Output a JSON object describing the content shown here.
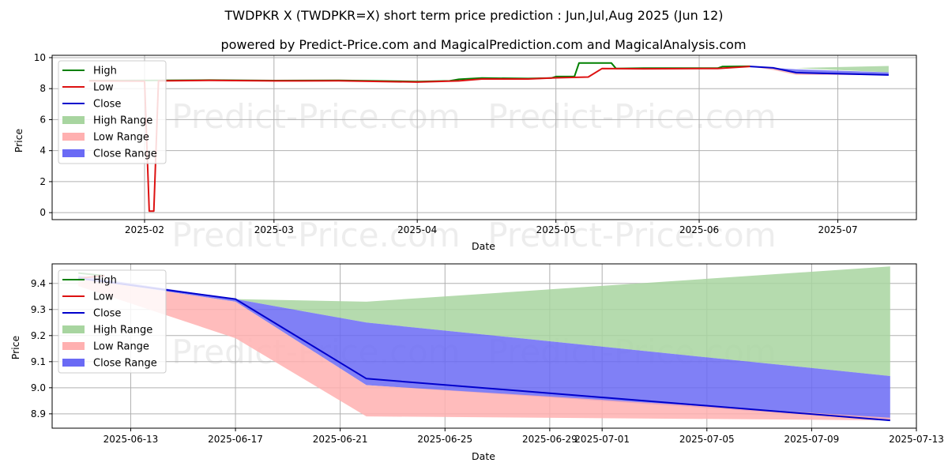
{
  "title": "TWDPKR X (TWDPKR=X) short term price prediction : Jun,Jul,Aug 2025 (Jun 12)",
  "subtitle": "powered by Predict-Price.com and MagicalPrediction.com and MagicalAnalysis.com",
  "watermark": "Predict-Price.com",
  "colors": {
    "high": "#008000",
    "low": "#dd1111",
    "close": "#0000cc",
    "high_range": "#a8d5a0",
    "low_range": "#ffb0b0",
    "close_range": "#6a6af5"
  },
  "legend": [
    "High",
    "Low",
    "Close",
    "High Range",
    "Low Range",
    "Close Range"
  ],
  "chart_data": [
    {
      "type": "line",
      "xlabel": "Date",
      "ylabel": "Price",
      "x_range": [
        "2025-01-12",
        "2025-07-18"
      ],
      "ylim": [
        -0.45,
        10.15
      ],
      "x_ticks": [
        "2025-02-01",
        "2025-03-01",
        "2025-04-01",
        "2025-05-01",
        "2025-06-01",
        "2025-07-01"
      ],
      "x_tick_labels": [
        "2025-02",
        "2025-03",
        "2025-04",
        "2025-05",
        "2025-06",
        "2025-07"
      ],
      "y_ticks": [
        0,
        2,
        4,
        6,
        8,
        10
      ],
      "y_tick_labels": [
        "0",
        "2",
        "4",
        "6",
        "8",
        "10"
      ],
      "series": [
        {
          "name": "High",
          "points": [
            [
              "2025-01-20",
              8.52
            ],
            [
              "2025-02-05",
              8.53
            ],
            [
              "2025-02-15",
              8.55
            ],
            [
              "2025-03-01",
              8.52
            ],
            [
              "2025-03-15",
              8.53
            ],
            [
              "2025-04-01",
              8.46
            ],
            [
              "2025-04-08",
              8.5
            ],
            [
              "2025-04-10",
              8.6
            ],
            [
              "2025-04-15",
              8.68
            ],
            [
              "2025-04-25",
              8.65
            ],
            [
              "2025-04-30",
              8.68
            ],
            [
              "2025-05-01",
              8.78
            ],
            [
              "2025-05-05",
              8.78
            ],
            [
              "2025-05-06",
              9.65
            ],
            [
              "2025-05-13",
              9.65
            ],
            [
              "2025-05-14",
              9.3
            ],
            [
              "2025-05-20",
              9.32
            ],
            [
              "2025-06-05",
              9.32
            ],
            [
              "2025-06-06",
              9.42
            ],
            [
              "2025-06-12",
              9.44
            ]
          ]
        },
        {
          "name": "Low",
          "points": [
            [
              "2025-01-20",
              8.5
            ],
            [
              "2025-02-01",
              8.48
            ],
            [
              "2025-02-02",
              0.1
            ],
            [
              "2025-02-03",
              0.1
            ],
            [
              "2025-02-04",
              8.5
            ],
            [
              "2025-02-15",
              8.53
            ],
            [
              "2025-03-01",
              8.5
            ],
            [
              "2025-03-15",
              8.51
            ],
            [
              "2025-04-01",
              8.42
            ],
            [
              "2025-04-10",
              8.5
            ],
            [
              "2025-04-15",
              8.62
            ],
            [
              "2025-04-25",
              8.62
            ],
            [
              "2025-05-01",
              8.7
            ],
            [
              "2025-05-08",
              8.75
            ],
            [
              "2025-05-11",
              9.3
            ],
            [
              "2025-05-20",
              9.28
            ],
            [
              "2025-06-05",
              9.3
            ],
            [
              "2025-06-12",
              9.43
            ]
          ]
        },
        {
          "name": "Close",
          "points": [
            [
              "2025-06-12",
              9.43
            ],
            [
              "2025-06-17",
              9.34
            ],
            [
              "2025-06-22",
              9.03
            ],
            [
              "2025-07-12",
              8.88
            ]
          ]
        },
        {
          "name": "High Range",
          "kind": "band",
          "points": [
            [
              "2025-06-12",
              9.43,
              9.43
            ],
            [
              "2025-06-17",
              9.34,
              9.34
            ],
            [
              "2025-06-22",
              9.33,
              9.33
            ],
            [
              "2025-07-12",
              9.05,
              9.46
            ]
          ]
        },
        {
          "name": "Low Range",
          "kind": "band",
          "points": [
            [
              "2025-06-12",
              9.43,
              9.43
            ],
            [
              "2025-06-17",
              9.2,
              9.34
            ],
            [
              "2025-06-22",
              8.89,
              9.01
            ],
            [
              "2025-07-12",
              8.88,
              8.88
            ]
          ]
        },
        {
          "name": "Close Range",
          "kind": "band",
          "points": [
            [
              "2025-06-12",
              9.43,
              9.43
            ],
            [
              "2025-06-17",
              9.33,
              9.34
            ],
            [
              "2025-06-22",
              9.01,
              9.25
            ],
            [
              "2025-07-12",
              8.88,
              9.05
            ]
          ]
        }
      ]
    },
    {
      "type": "line",
      "xlabel": "Date",
      "ylabel": "Price",
      "x_range": [
        "2025-06-10",
        "2025-07-13"
      ],
      "ylim": [
        8.845,
        9.475
      ],
      "x_ticks": [
        "2025-06-13",
        "2025-06-17",
        "2025-06-21",
        "2025-06-25",
        "2025-06-29",
        "2025-07-01",
        "2025-07-05",
        "2025-07-09",
        "2025-07-13"
      ],
      "x_tick_labels": [
        "2025-06-13",
        "2025-06-17",
        "2025-06-21",
        "2025-06-25",
        "2025-06-29",
        "2025-07-01",
        "2025-07-05",
        "2025-07-09",
        "2025-07-13"
      ],
      "y_ticks": [
        8.9,
        9.0,
        9.1,
        9.2,
        9.3,
        9.4
      ],
      "y_tick_labels": [
        "8.9",
        "9.0",
        "9.1",
        "9.2",
        "9.3",
        "9.4"
      ],
      "series": [
        {
          "name": "High",
          "points": [
            [
              "2025-06-11",
              9.44
            ],
            [
              "2025-06-12",
              9.43
            ]
          ]
        },
        {
          "name": "Low",
          "points": [
            [
              "2025-06-11",
              9.42
            ],
            [
              "2025-06-12",
              9.43
            ]
          ]
        },
        {
          "name": "Close",
          "points": [
            [
              "2025-06-11",
              9.42
            ],
            [
              "2025-06-17",
              9.34
            ],
            [
              "2025-06-22",
              9.035
            ],
            [
              "2025-07-12",
              8.875
            ]
          ]
        },
        {
          "name": "High Range",
          "kind": "band",
          "points": [
            [
              "2025-06-11",
              9.42,
              9.42
            ],
            [
              "2025-06-17",
              9.34,
              9.34
            ],
            [
              "2025-06-22",
              9.25,
              9.33
            ],
            [
              "2025-07-12",
              9.045,
              9.465
            ]
          ]
        },
        {
          "name": "Low Range",
          "kind": "band",
          "points": [
            [
              "2025-06-11",
              9.39,
              9.42
            ],
            [
              "2025-06-17",
              9.19,
              9.33
            ],
            [
              "2025-06-22",
              8.89,
              9.01
            ],
            [
              "2025-07-12",
              8.875,
              8.885
            ]
          ]
        },
        {
          "name": "Close Range",
          "kind": "band",
          "points": [
            [
              "2025-06-11",
              9.42,
              9.43
            ],
            [
              "2025-06-17",
              9.33,
              9.34
            ],
            [
              "2025-06-22",
              9.01,
              9.25
            ],
            [
              "2025-07-12",
              8.875,
              9.045
            ]
          ]
        }
      ]
    }
  ]
}
